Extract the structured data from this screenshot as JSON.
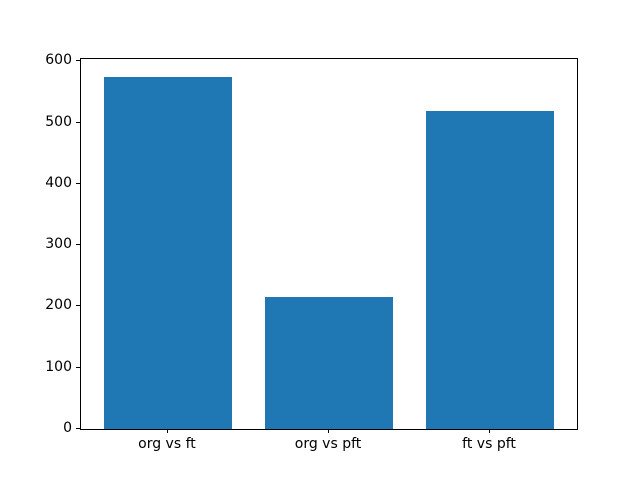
{
  "chart_data": {
    "type": "bar",
    "categories": [
      "org vs ft",
      "org vs pft",
      "ft vs pft"
    ],
    "values": [
      575,
      216,
      519
    ],
    "title": "",
    "xlabel": "",
    "ylabel": "",
    "ylim": [
      0,
      603.75
    ],
    "yticks": [
      0,
      100,
      200,
      300,
      400,
      500,
      600
    ],
    "bar_color": "#1f77b4",
    "bar_width_fraction": 0.8,
    "grid": false,
    "legend": null
  },
  "colors": {
    "background": "#ffffff",
    "spine": "#000000",
    "tick_label": "#000000"
  }
}
